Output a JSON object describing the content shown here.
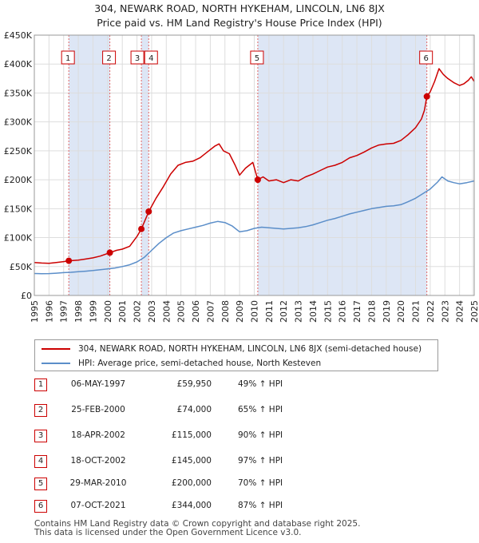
{
  "title_line1": "304, NEWARK ROAD, NORTH HYKEHAM, LINCOLN, LN6 8JX",
  "title_line2": "Price paid vs. HM Land Registry's House Price Index (HPI)",
  "colors": {
    "property": "#cc0000",
    "hpi": "#5b8ec9",
    "shade": "#dde6f5",
    "vline": "#e06666",
    "grid": "#dddddd"
  },
  "chart_data": {
    "type": "line",
    "xlim": [
      1995,
      2025
    ],
    "ylim": [
      0,
      450000
    ],
    "grid": true,
    "y_ticks": [
      {
        "value": 0,
        "label": "£0"
      },
      {
        "value": 50000,
        "label": "£50K"
      },
      {
        "value": 100000,
        "label": "£100K"
      },
      {
        "value": 150000,
        "label": "£150K"
      },
      {
        "value": 200000,
        "label": "£200K"
      },
      {
        "value": 250000,
        "label": "£250K"
      },
      {
        "value": 300000,
        "label": "£300K"
      },
      {
        "value": 350000,
        "label": "£350K"
      },
      {
        "value": 400000,
        "label": "£400K"
      },
      {
        "value": 450000,
        "label": "£450K"
      }
    ],
    "x_ticks": [
      "1995",
      "1996",
      "1997",
      "1998",
      "1999",
      "2000",
      "2001",
      "2002",
      "2003",
      "2004",
      "2005",
      "2006",
      "2007",
      "2008",
      "2009",
      "2010",
      "2011",
      "2012",
      "2013",
      "2014",
      "2015",
      "2016",
      "2017",
      "2018",
      "2019",
      "2020",
      "2021",
      "2022",
      "2023",
      "2024",
      "2025"
    ],
    "shaded_spans": [
      [
        1997.35,
        2000.15
      ],
      [
        2002.3,
        2002.8
      ],
      [
        2010.24,
        2021.77
      ]
    ],
    "series": [
      {
        "name": "304, NEWARK ROAD, NORTH HYKEHAM, LINCOLN, LN6 8JX (semi-detached house)",
        "color": "#cc0000",
        "points": [
          [
            1995.0,
            57000
          ],
          [
            1995.5,
            56000
          ],
          [
            1996.0,
            55500
          ],
          [
            1996.5,
            57000
          ],
          [
            1997.0,
            58500
          ],
          [
            1997.35,
            59950
          ],
          [
            1998.0,
            61000
          ],
          [
            1998.5,
            63000
          ],
          [
            1999.0,
            65000
          ],
          [
            1999.5,
            68000
          ],
          [
            2000.15,
            74000
          ],
          [
            2000.6,
            78000
          ],
          [
            2001.0,
            80000
          ],
          [
            2001.5,
            85000
          ],
          [
            2002.0,
            102000
          ],
          [
            2002.3,
            115000
          ],
          [
            2002.8,
            145000
          ],
          [
            2003.3,
            168000
          ],
          [
            2003.8,
            188000
          ],
          [
            2004.3,
            210000
          ],
          [
            2004.8,
            225000
          ],
          [
            2005.3,
            230000
          ],
          [
            2005.8,
            232000
          ],
          [
            2006.3,
            238000
          ],
          [
            2006.8,
            248000
          ],
          [
            2007.3,
            258000
          ],
          [
            2007.6,
            262000
          ],
          [
            2007.9,
            250000
          ],
          [
            2008.3,
            245000
          ],
          [
            2008.7,
            225000
          ],
          [
            2009.0,
            208000
          ],
          [
            2009.4,
            220000
          ],
          [
            2009.9,
            230000
          ],
          [
            2010.24,
            200000
          ],
          [
            2010.6,
            205000
          ],
          [
            2011.0,
            198000
          ],
          [
            2011.5,
            200000
          ],
          [
            2012.0,
            195000
          ],
          [
            2012.5,
            200000
          ],
          [
            2013.0,
            198000
          ],
          [
            2013.5,
            205000
          ],
          [
            2014.0,
            210000
          ],
          [
            2014.5,
            216000
          ],
          [
            2015.0,
            222000
          ],
          [
            2015.5,
            225000
          ],
          [
            2016.0,
            230000
          ],
          [
            2016.5,
            238000
          ],
          [
            2017.0,
            242000
          ],
          [
            2017.5,
            248000
          ],
          [
            2018.0,
            255000
          ],
          [
            2018.5,
            260000
          ],
          [
            2019.0,
            262000
          ],
          [
            2019.5,
            263000
          ],
          [
            2020.0,
            268000
          ],
          [
            2020.5,
            278000
          ],
          [
            2021.0,
            290000
          ],
          [
            2021.4,
            305000
          ],
          [
            2021.6,
            320000
          ],
          [
            2021.77,
            344000
          ],
          [
            2022.0,
            352000
          ],
          [
            2022.3,
            370000
          ],
          [
            2022.6,
            392000
          ],
          [
            2022.9,
            382000
          ],
          [
            2023.2,
            375000
          ],
          [
            2023.6,
            368000
          ],
          [
            2024.0,
            363000
          ],
          [
            2024.3,
            366000
          ],
          [
            2024.6,
            372000
          ],
          [
            2024.8,
            378000
          ],
          [
            2025.0,
            370000
          ]
        ]
      },
      {
        "name": "HPI: Average price, semi-detached house, North Kesteven",
        "color": "#5b8ec9",
        "points": [
          [
            1995.0,
            38000
          ],
          [
            1995.5,
            37500
          ],
          [
            1996.0,
            37800
          ],
          [
            1996.5,
            38500
          ],
          [
            1997.0,
            39500
          ],
          [
            1997.5,
            40000
          ],
          [
            1998.0,
            41000
          ],
          [
            1998.5,
            42000
          ],
          [
            1999.0,
            43000
          ],
          [
            1999.5,
            44500
          ],
          [
            2000.0,
            46000
          ],
          [
            2000.5,
            47500
          ],
          [
            2001.0,
            50000
          ],
          [
            2001.5,
            53000
          ],
          [
            2002.0,
            58000
          ],
          [
            2002.5,
            66000
          ],
          [
            2003.0,
            78000
          ],
          [
            2003.5,
            90000
          ],
          [
            2004.0,
            100000
          ],
          [
            2004.5,
            108000
          ],
          [
            2005.0,
            112000
          ],
          [
            2005.5,
            115000
          ],
          [
            2006.0,
            118000
          ],
          [
            2006.5,
            121000
          ],
          [
            2007.0,
            125000
          ],
          [
            2007.5,
            128000
          ],
          [
            2008.0,
            126000
          ],
          [
            2008.5,
            120000
          ],
          [
            2009.0,
            110000
          ],
          [
            2009.5,
            112000
          ],
          [
            2010.0,
            116000
          ],
          [
            2010.5,
            118000
          ],
          [
            2011.0,
            117000
          ],
          [
            2011.5,
            116000
          ],
          [
            2012.0,
            115000
          ],
          [
            2012.5,
            116000
          ],
          [
            2013.0,
            117000
          ],
          [
            2013.5,
            119000
          ],
          [
            2014.0,
            122000
          ],
          [
            2014.5,
            126000
          ],
          [
            2015.0,
            130000
          ],
          [
            2015.5,
            133000
          ],
          [
            2016.0,
            137000
          ],
          [
            2016.5,
            141000
          ],
          [
            2017.0,
            144000
          ],
          [
            2017.5,
            147000
          ],
          [
            2018.0,
            150000
          ],
          [
            2018.5,
            152000
          ],
          [
            2019.0,
            154000
          ],
          [
            2019.5,
            155000
          ],
          [
            2020.0,
            157000
          ],
          [
            2020.5,
            162000
          ],
          [
            2021.0,
            168000
          ],
          [
            2021.5,
            176000
          ],
          [
            2022.0,
            184000
          ],
          [
            2022.5,
            196000
          ],
          [
            2022.8,
            205000
          ],
          [
            2023.2,
            198000
          ],
          [
            2023.6,
            195000
          ],
          [
            2024.0,
            193000
          ],
          [
            2024.5,
            195000
          ],
          [
            2025.0,
            198000
          ]
        ]
      }
    ],
    "markers": [
      {
        "label": "1",
        "x": 1997.35,
        "y": 59950
      },
      {
        "label": "2",
        "x": 2000.15,
        "y": 74000
      },
      {
        "label": "3",
        "x": 2002.3,
        "y": 115000
      },
      {
        "label": "4",
        "x": 2002.8,
        "y": 145000
      },
      {
        "label": "5",
        "x": 2010.24,
        "y": 200000
      },
      {
        "label": "6",
        "x": 2021.77,
        "y": 344000
      }
    ]
  },
  "legend": {
    "property_label": "304, NEWARK ROAD, NORTH HYKEHAM, LINCOLN, LN6 8JX (semi-detached house)",
    "hpi_label": "HPI: Average price, semi-detached house, North Kesteven"
  },
  "transactions": [
    {
      "num": "1",
      "date": "06-MAY-1997",
      "price": "£59,950",
      "hpi": "49% ↑ HPI"
    },
    {
      "num": "2",
      "date": "25-FEB-2000",
      "price": "£74,000",
      "hpi": "65% ↑ HPI"
    },
    {
      "num": "3",
      "date": "18-APR-2002",
      "price": "£115,000",
      "hpi": "90% ↑ HPI"
    },
    {
      "num": "4",
      "date": "18-OCT-2002",
      "price": "£145,000",
      "hpi": "97% ↑ HPI"
    },
    {
      "num": "5",
      "date": "29-MAR-2010",
      "price": "£200,000",
      "hpi": "70% ↑ HPI"
    },
    {
      "num": "6",
      "date": "07-OCT-2021",
      "price": "£344,000",
      "hpi": "87% ↑ HPI"
    }
  ],
  "footer": {
    "line1": "Contains HM Land Registry data © Crown copyright and database right 2025.",
    "line2": "This data is licensed under the Open Government Licence v3.0."
  }
}
